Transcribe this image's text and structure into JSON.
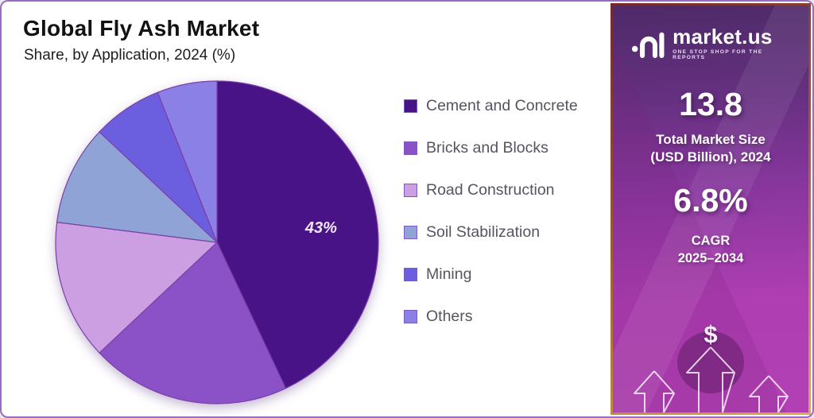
{
  "header": {
    "title": "Global Fly Ash Market",
    "subtitle": "Share, by Application, 2024 (%)"
  },
  "chart_data": {
    "type": "pie",
    "title": "Global Fly Ash Market",
    "subtitle": "Share, by Application, 2024 (%)",
    "categories": [
      "Cement and Concrete",
      "Bricks and Blocks",
      "Road Construction",
      "Soil Stabilization",
      "Mining",
      "Others"
    ],
    "values": [
      43,
      20,
      14,
      10,
      7,
      6
    ],
    "unit": "%",
    "colors": [
      "#471386",
      "#8b51c6",
      "#cb9fe2",
      "#8fa3d6",
      "#6b5fe0",
      "#8b80e6"
    ],
    "data_labels": [
      "43%",
      "",
      "",
      "",
      "",
      ""
    ],
    "slice_stroke": "#7b3fa6",
    "start_angle_deg": 0,
    "direction": "clockwise",
    "legend_position": "right",
    "label_radius_factor": 0.56
  },
  "sidebar": {
    "brand": {
      "name": "market.us",
      "tagline": "ONE STOP SHOP FOR THE REPORTS",
      "logo_icon": "market-us-logo"
    },
    "stats": [
      {
        "value": "13.8",
        "label1": "Total Market Size",
        "label2": "(USD Billion), 2024"
      },
      {
        "value": "6.8%",
        "label1": "CAGR",
        "label2": "2025–2034"
      }
    ],
    "dollar_symbol": "$",
    "accent_colors": {
      "sidebar_top": "#4e2a69",
      "sidebar_bottom": "#b240b4",
      "frame_border": "#9c6cc3",
      "sidebar_border_gold": "#d9a84e"
    }
  }
}
